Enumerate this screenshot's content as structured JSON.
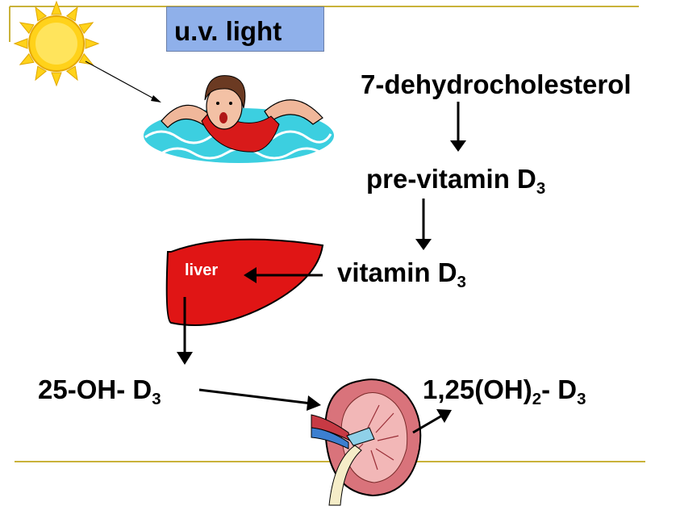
{
  "uv_label": "u.v. light",
  "steps": {
    "dehydro": "7-dehydrocholesterol",
    "pre_vitamin": "pre-vitamin D",
    "pre_vitamin_sub": "3",
    "vitamin": "vitamin D",
    "vitamin_sub": "3",
    "hydroxy": "25-OH- D",
    "hydroxy_sub": "3",
    "dihydroxy_a": "1,25(OH)",
    "dihydroxy_sub2": "2",
    "dihydroxy_b": "- D",
    "dihydroxy_sub3": "3"
  },
  "organs": {
    "liver": "liver"
  },
  "colors": {
    "accent_line": "#c9b23a",
    "uv_box": "#8fb0ea",
    "liver": "#e01515",
    "sun": "#ffd21a",
    "water": "#3ccfe0",
    "kidney": "#d9737b"
  }
}
